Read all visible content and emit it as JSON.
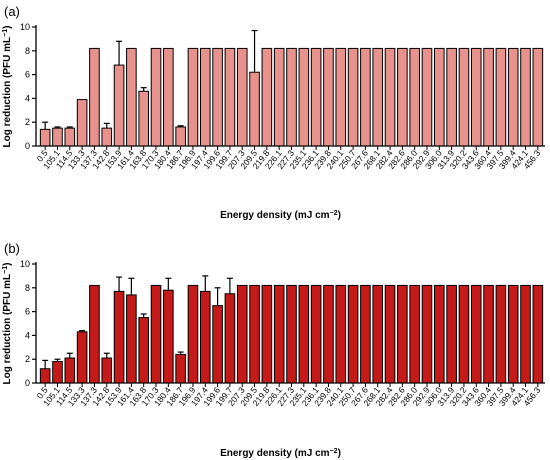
{
  "chart_data": [
    {
      "panel_label": "(a)",
      "type": "bar",
      "ylabel": "Log reduction (PFU mL",
      "ylabel_sup": "−1",
      "ylabel_end": ")",
      "xlabel": "Energy density (mJ cm",
      "xlabel_sup": "−2",
      "xlabel_end": ")",
      "ylim": [
        0,
        10
      ],
      "yticks": [
        "0",
        "2",
        "4",
        "6",
        "8",
        "10"
      ],
      "bar_color": "#e8928e",
      "categories": [
        "0.5",
        "105.1",
        "114.5",
        "133.3",
        "137.3",
        "142.8",
        "153.9",
        "161.4",
        "163.8",
        "170.3",
        "180.4",
        "186.7",
        "196.9",
        "197.4",
        "199.6",
        "199.7",
        "207.3",
        "209.5",
        "219.8",
        "226.1",
        "227.3",
        "235.1",
        "236.1",
        "239.8",
        "240.1",
        "250.7",
        "267.6",
        "268.1",
        "282.4",
        "282.6",
        "286.0",
        "292.9",
        "306.0",
        "313.9",
        "320.2",
        "343.6",
        "360.4",
        "397.5",
        "399.4",
        "424.1",
        "456.3"
      ],
      "values": [
        1.4,
        1.5,
        1.5,
        3.9,
        8.2,
        1.5,
        6.8,
        8.2,
        4.6,
        8.2,
        8.2,
        1.6,
        8.2,
        8.2,
        8.2,
        8.2,
        8.2,
        6.2,
        8.2,
        8.2,
        8.2,
        8.2,
        8.2,
        8.2,
        8.2,
        8.2,
        8.2,
        8.2,
        8.2,
        8.2,
        8.2,
        8.2,
        8.2,
        8.2,
        8.2,
        8.2,
        8.2,
        8.2,
        8.2,
        8.2,
        8.2
      ],
      "errors": [
        0.6,
        0.1,
        0.1,
        0,
        0,
        0.4,
        2.0,
        0,
        0.3,
        0,
        0,
        0.1,
        0,
        0,
        0,
        0,
        0,
        3.5,
        0,
        0,
        0,
        0,
        0,
        0,
        0,
        0,
        0,
        0,
        0,
        0,
        0,
        0,
        0,
        0,
        0,
        0,
        0,
        0,
        0,
        0,
        0
      ]
    },
    {
      "panel_label": "(b)",
      "type": "bar",
      "ylabel": "Log reduction (PFU mL",
      "ylabel_sup": "−1",
      "ylabel_end": ")",
      "xlabel": "Energy density (mJ cm",
      "xlabel_sup": "−2",
      "xlabel_end": ")",
      "ylim": [
        0,
        10
      ],
      "yticks": [
        "0",
        "2",
        "4",
        "6",
        "8",
        "10"
      ],
      "bar_color": "#c41a1a",
      "categories": [
        "0.5",
        "105.1",
        "114.5",
        "133.3",
        "137.3",
        "142.8",
        "153.9",
        "161.4",
        "163.8",
        "170.3",
        "180.4",
        "186.7",
        "196.9",
        "197.4",
        "199.6",
        "199.7",
        "207.3",
        "209.5",
        "219.8",
        "226.1",
        "227.3",
        "235.1",
        "236.1",
        "239.8",
        "240.1",
        "250.7",
        "267.6",
        "268.1",
        "282.4",
        "282.6",
        "286.0",
        "292.9",
        "306.0",
        "313.9",
        "320.2",
        "343.6",
        "360.4",
        "397.5",
        "399.4",
        "424.1",
        "456.3"
      ],
      "values": [
        1.2,
        1.8,
        2.1,
        4.3,
        8.2,
        2.1,
        7.7,
        7.4,
        5.5,
        8.2,
        7.8,
        2.4,
        8.2,
        7.7,
        6.5,
        7.5,
        8.2,
        8.2,
        8.2,
        8.2,
        8.2,
        8.2,
        8.2,
        8.2,
        8.2,
        8.2,
        8.2,
        8.2,
        8.2,
        8.2,
        8.2,
        8.2,
        8.2,
        8.2,
        8.2,
        8.2,
        8.2,
        8.2,
        8.2,
        8.2,
        8.2
      ],
      "errors": [
        0.7,
        0.2,
        0.4,
        0.1,
        0,
        0.4,
        1.2,
        1.4,
        0.3,
        0,
        1.0,
        0.2,
        0,
        1.3,
        1.5,
        1.3,
        0,
        0,
        0,
        0,
        0,
        0,
        0,
        0,
        0,
        0,
        0,
        0,
        0,
        0,
        0,
        0,
        0,
        0,
        0,
        0,
        0,
        0,
        0,
        0,
        0
      ]
    }
  ]
}
